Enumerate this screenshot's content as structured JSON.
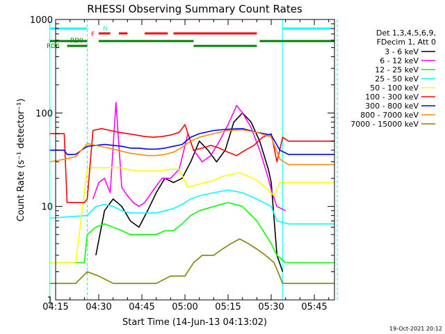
{
  "chart_data": {
    "type": "line",
    "title": "RHESSI Observing Summary Count Rates",
    "xlabel": "Start Time (14-Jun-13 04:13:02)",
    "ylabel": "Count Rate (s⁻¹ detector⁻¹)",
    "yscale": "log",
    "ylim": [
      1,
      1000
    ],
    "xlim_minutes": [
      255,
      352
    ],
    "x_ticks": [
      "04:15",
      "04:30",
      "04:45",
      "05:00",
      "05:15",
      "05:30",
      "05:45"
    ],
    "x_tick_minutes": [
      255,
      270,
      285,
      300,
      315,
      330,
      345
    ],
    "y_ticks": [
      "1",
      "10",
      "100",
      "1000"
    ],
    "y_tick_values": [
      1,
      10,
      100,
      1000
    ],
    "legend_header": [
      "Det 1,3,4,5,6,9,",
      "FDecim 1, Att 0"
    ],
    "timestamp": "19-Oct-2021 20:12",
    "annotations": [
      "N",
      "F",
      "RD0",
      "RD6"
    ],
    "night_minutes": [
      [
        253,
        266
      ],
      [
        334,
        353
      ]
    ],
    "flag_rows": [
      {
        "label": "N",
        "color": "#00ffff",
        "segments": [
          [
            253,
            266
          ],
          [
            334,
            351
          ]
        ]
      },
      {
        "label": "F",
        "color": "#ff0000",
        "segments": [
          [
            270,
            274
          ],
          [
            277,
            280
          ],
          [
            286,
            294
          ],
          [
            296,
            325
          ]
        ]
      },
      {
        "label": "RD0",
        "color": "#008000",
        "segments": [
          [
            253,
            266
          ],
          [
            270,
            303
          ],
          [
            326,
            352
          ]
        ]
      },
      {
        "label": "RD6",
        "color": "#008000",
        "segments": [
          [
            259,
            266
          ],
          [
            303,
            325
          ]
        ]
      }
    ],
    "series": [
      {
        "name": "3 - 6 keV",
        "color": "#000000",
        "x": [
          269,
          272,
          275,
          278,
          281,
          284,
          287,
          290,
          293,
          296,
          299,
          302,
          305,
          308,
          311,
          314,
          317,
          320,
          323,
          326,
          329,
          330,
          332,
          334
        ],
        "values": [
          3,
          9,
          12,
          10,
          7,
          6,
          9,
          14,
          20,
          18,
          20,
          30,
          50,
          40,
          30,
          40,
          80,
          100,
          80,
          50,
          25,
          18,
          3,
          2
        ]
      },
      {
        "name": "6 - 12 keV",
        "color": "#ff00ff",
        "x": [
          268,
          270,
          272,
          274,
          276,
          278,
          280,
          282,
          284,
          286,
          289,
          292,
          295,
          298,
          301,
          303,
          306,
          309,
          312,
          315,
          318,
          320,
          323,
          326,
          329,
          330,
          332,
          335
        ],
        "values": [
          12,
          18,
          20,
          14,
          130,
          16,
          13,
          11,
          10,
          11,
          15,
          20,
          20,
          25,
          60,
          40,
          30,
          35,
          50,
          75,
          120,
          100,
          70,
          40,
          20,
          15,
          10,
          9
        ]
      },
      {
        "name": "12 - 25 keV",
        "color": "#00ff00",
        "x": [
          255,
          262,
          265,
          266,
          269,
          272,
          275,
          278,
          281,
          284,
          287,
          290,
          293,
          296,
          299,
          302,
          305,
          310,
          315,
          320,
          325,
          330,
          332,
          335,
          345,
          352
        ],
        "values": [
          2.5,
          2.5,
          2.5,
          5,
          6,
          6.5,
          6,
          5.5,
          5,
          5,
          5,
          5,
          5.5,
          5.5,
          6.5,
          8,
          9,
          10,
          11,
          10,
          7,
          4,
          3,
          2.5,
          2.5,
          2.5
        ]
      },
      {
        "name": "25 - 50 keV",
        "color": "#00ffff",
        "x": [
          253,
          266,
          269,
          272,
          275,
          278,
          281,
          284,
          287,
          290,
          293,
          296,
          299,
          302,
          305,
          310,
          315,
          320,
          325,
          330,
          332,
          336,
          345,
          352
        ],
        "values": [
          7.5,
          8,
          10,
          10.5,
          10,
          9,
          8.5,
          8.5,
          8.5,
          8.5,
          9,
          9.5,
          10.5,
          12,
          13,
          14,
          15,
          14,
          12,
          10,
          7,
          6.5,
          6.5,
          6.5
        ]
      },
      {
        "name": "50 - 100 keV",
        "color": "#ffff00",
        "x": [
          253,
          262,
          266,
          268,
          271,
          274,
          277,
          280,
          283,
          286,
          289,
          292,
          295,
          298,
          301,
          304,
          307,
          310,
          313,
          316,
          319,
          322,
          325,
          328,
          331,
          333,
          336,
          345,
          352
        ],
        "values": [
          2.5,
          2.5,
          25,
          26,
          26,
          26,
          26,
          25,
          24,
          24,
          24,
          24,
          25,
          25,
          16,
          17,
          18,
          19,
          21,
          22,
          23,
          21,
          19,
          16,
          13,
          18,
          18,
          18,
          18
        ]
      },
      {
        "name": "100 - 300 keV",
        "color": "#ff0000",
        "x": [
          253,
          258,
          259,
          262,
          265,
          266,
          268,
          271,
          274,
          277,
          280,
          283,
          286,
          289,
          292,
          295,
          298,
          300,
          303,
          306,
          309,
          312,
          315,
          318,
          321,
          324,
          327,
          330,
          332,
          334,
          336,
          345,
          352
        ],
        "values": [
          60,
          60,
          11,
          11,
          11,
          12,
          65,
          68,
          65,
          62,
          60,
          58,
          56,
          55,
          56,
          58,
          62,
          75,
          40,
          42,
          45,
          42,
          38,
          35,
          40,
          45,
          55,
          60,
          30,
          55,
          50,
          50,
          50
        ]
      },
      {
        "name": "300 - 800 keV",
        "color": "#0000ff",
        "x": [
          253,
          258,
          259,
          262,
          266,
          269,
          272,
          275,
          278,
          281,
          284,
          287,
          290,
          293,
          296,
          299,
          302,
          305,
          310,
          315,
          320,
          325,
          330,
          333,
          336,
          345,
          352
        ],
        "values": [
          40,
          40,
          36,
          36,
          44,
          45,
          46,
          45,
          44,
          42,
          42,
          41,
          41,
          42,
          44,
          46,
          55,
          60,
          65,
          67,
          68,
          62,
          58,
          40,
          36,
          36,
          36
        ]
      },
      {
        "name": "800 - 7000 keV",
        "color": "#ff8c00",
        "x": [
          253,
          258,
          262,
          266,
          269,
          272,
          275,
          278,
          281,
          284,
          287,
          290,
          293,
          296,
          299,
          302,
          305,
          310,
          315,
          320,
          325,
          330,
          333,
          336,
          345,
          352
        ],
        "values": [
          30,
          32,
          34,
          47,
          45,
          43,
          41,
          39,
          37,
          36,
          35,
          35,
          36,
          38,
          43,
          50,
          55,
          60,
          65,
          66,
          62,
          55,
          32,
          28,
          28,
          28
        ]
      },
      {
        "name": "7000 - 15000 keV",
        "color": "#808000",
        "x": [
          253,
          262,
          266,
          270,
          275,
          280,
          285,
          290,
          295,
          300,
          303,
          306,
          310,
          313,
          316,
          319,
          322,
          325,
          328,
          331,
          334,
          340,
          345,
          352
        ],
        "values": [
          1.5,
          1.5,
          2,
          1.8,
          1.5,
          1.5,
          1.5,
          1.5,
          1.8,
          1.8,
          2.5,
          3,
          3,
          3.5,
          4,
          4.5,
          4,
          3.5,
          3,
          2.5,
          1.5,
          1.5,
          1.5,
          1.5
        ]
      }
    ]
  }
}
